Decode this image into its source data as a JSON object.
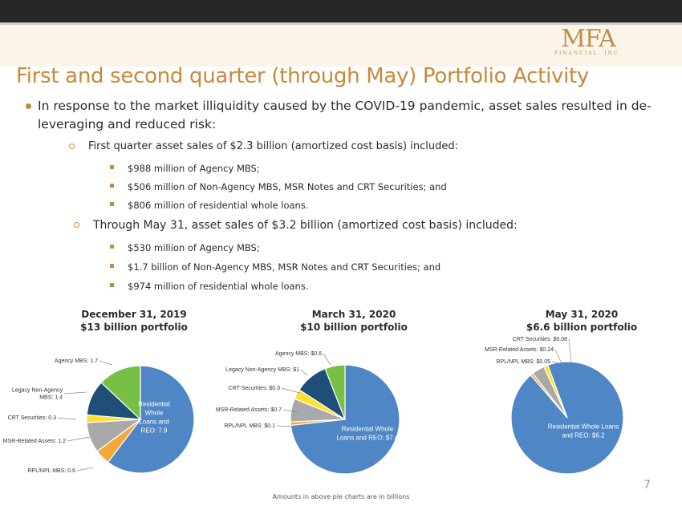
{
  "header": {
    "logo_main": "MFA",
    "logo_sub": "FINANCIAL, INC.",
    "title": "First and second quarter (through May) Portfolio Activity"
  },
  "bullets": {
    "intro": "In response to the market illiquidity caused by the COVID-19 pandemic, asset sales resulted in de-leveraging and reduced risk:",
    "q1": {
      "heading": "First quarter asset sales of $2.3 billion (amortized cost basis) included:",
      "items": [
        "$988 million of Agency MBS;",
        "$506 million of Non-Agency MBS, MSR Notes and CRT Securities; and",
        "$806 million of residential whole loans."
      ]
    },
    "may": {
      "heading": "Through May 31, asset sales of $3.2 billion (amortized cost basis) included:",
      "items": [
        "$530 million of Agency MBS;",
        "$1.7 billion of Non-Agency MBS, MSR Notes and CRT Securities; and",
        "$974 million of residential whole loans."
      ]
    }
  },
  "colors": {
    "residential": "#4f86c6",
    "rpl_npl": "#f3a838",
    "msr": "#a9a9a9",
    "crt": "#fde030",
    "legacy": "#1f4e79",
    "agency": "#77c045"
  },
  "chart_data": [
    {
      "type": "pie",
      "title": "December 31, 2019",
      "subtitle": "$13 billion portfolio",
      "slices": [
        {
          "label": "Residential Whole Loans and REO: 7.9",
          "value": 7.9,
          "color": "#4f86c6"
        },
        {
          "label": "RPL/NPL MBS: 0.6",
          "value": 0.6,
          "color": "#f3a838"
        },
        {
          "label": "MSR-Related Assets: 1.2",
          "value": 1.2,
          "color": "#a9a9a9"
        },
        {
          "label": "CRT Securities: 0.3",
          "value": 0.3,
          "color": "#fde030"
        },
        {
          "label": "Legacy Non-Agency MBS: 1.4",
          "value": 1.4,
          "color": "#1f4e79"
        },
        {
          "label": "Agency MBS: 1.7",
          "value": 1.7,
          "color": "#77c045"
        }
      ]
    },
    {
      "type": "pie",
      "title": "March 31, 2020",
      "subtitle": "$10 billion portfolio",
      "slices": [
        {
          "label": "Residential Whole Loans and REO: $7.4",
          "value": 7.4,
          "color": "#4f86c6"
        },
        {
          "label": "RPL/NPL MBS: $0.1",
          "value": 0.1,
          "color": "#f3a838"
        },
        {
          "label": "MSR-Related Assets: $0.7",
          "value": 0.7,
          "color": "#a9a9a9"
        },
        {
          "label": "CRT Securities: $0.3",
          "value": 0.3,
          "color": "#fde030"
        },
        {
          "label": "Legacy Non-Agency MBS: $1",
          "value": 1.0,
          "color": "#1f4e79"
        },
        {
          "label": "Agency MBS: $0.6",
          "value": 0.6,
          "color": "#77c045"
        }
      ]
    },
    {
      "type": "pie",
      "title": "May 31, 2020",
      "subtitle": "$6.6 billion portfolio",
      "slices": [
        {
          "label": "Residential Whole Loans and REO: $6.2",
          "value": 6.2,
          "color": "#4f86c6"
        },
        {
          "label": "RPL/NPL MBS: $0.05",
          "value": 0.05,
          "color": "#f3a838"
        },
        {
          "label": "MSR-Related Assets: $0.24",
          "value": 0.24,
          "color": "#a9a9a9"
        },
        {
          "label": "CRT Securities: $0.08",
          "value": 0.08,
          "color": "#fde030"
        }
      ]
    }
  ],
  "footnote": "Amounts in above pie charts are in billions",
  "page_number": "7"
}
